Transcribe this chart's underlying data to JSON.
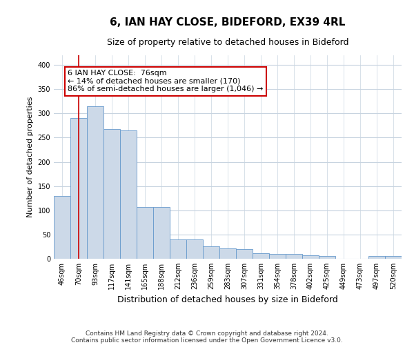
{
  "title1": "6, IAN HAY CLOSE, BIDEFORD, EX39 4RL",
  "title2": "Size of property relative to detached houses in Bideford",
  "xlabel": "Distribution of detached houses by size in Bideford",
  "ylabel": "Number of detached properties",
  "categories": [
    "46sqm",
    "70sqm",
    "93sqm",
    "117sqm",
    "141sqm",
    "165sqm",
    "188sqm",
    "212sqm",
    "236sqm",
    "259sqm",
    "283sqm",
    "307sqm",
    "331sqm",
    "354sqm",
    "378sqm",
    "402sqm",
    "425sqm",
    "449sqm",
    "473sqm",
    "497sqm",
    "520sqm"
  ],
  "values": [
    130,
    290,
    315,
    268,
    265,
    107,
    107,
    40,
    40,
    25,
    22,
    20,
    12,
    10,
    10,
    7,
    5,
    0,
    0,
    5,
    5
  ],
  "bar_color": "#ccd9e8",
  "bar_edge_color": "#6699cc",
  "grid_color": "#c8d4e0",
  "vline_x": 1.0,
  "vline_color": "#cc0000",
  "annotation_text": "6 IAN HAY CLOSE:  76sqm\n← 14% of detached houses are smaller (170)\n86% of semi-detached houses are larger (1,046) →",
  "ylim": [
    0,
    420
  ],
  "yticks": [
    0,
    50,
    100,
    150,
    200,
    250,
    300,
    350,
    400
  ],
  "footer1": "Contains HM Land Registry data © Crown copyright and database right 2024.",
  "footer2": "Contains public sector information licensed under the Open Government Licence v3.0.",
  "bg_color": "#ffffff",
  "title1_fontsize": 11,
  "title2_fontsize": 9,
  "ylabel_fontsize": 8,
  "xlabel_fontsize": 9,
  "tick_fontsize": 7,
  "annotation_fontsize": 8,
  "footer_fontsize": 6.5
}
